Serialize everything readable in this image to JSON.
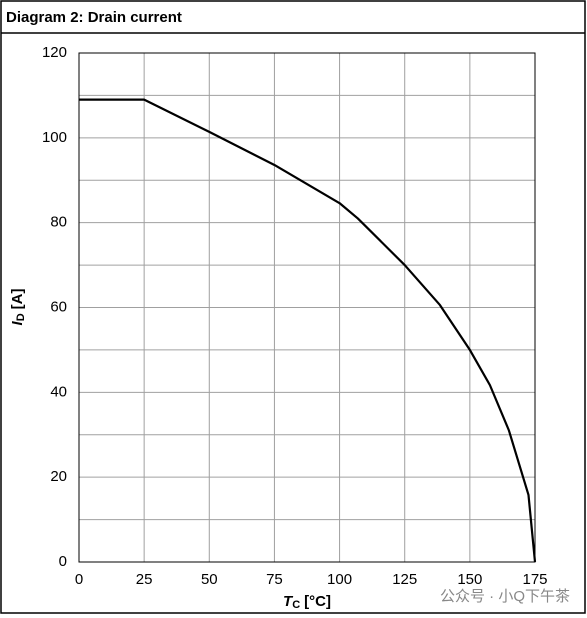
{
  "chart_data": {
    "type": "line",
    "title": "Diagram 2: Drain current",
    "xlabel_symbol": "T",
    "xlabel_subscript": "C",
    "xlabel_unit": "[°C]",
    "ylabel_symbol": "I",
    "ylabel_subscript": "D",
    "ylabel_unit": "[A]",
    "x": [
      0,
      25,
      50,
      75,
      100,
      107,
      125,
      138.5,
      150,
      157.7,
      165,
      172.5,
      175
    ],
    "values": [
      109,
      109,
      101.4,
      93.6,
      84.6,
      81,
      70,
      60.6,
      50,
      41.7,
      31,
      15.8,
      0
    ],
    "color": "#000000",
    "xlim": [
      0,
      175
    ],
    "xticks": [
      0,
      25,
      50,
      75,
      100,
      125,
      150,
      175
    ],
    "ylim": [
      0,
      120
    ],
    "yticks": [
      0,
      20,
      40,
      60,
      80,
      100,
      120
    ],
    "minor_yticks": [
      10,
      30,
      50,
      70,
      90,
      110
    ],
    "grid": true
  },
  "watermark": "公众号 · 小Q下午茶"
}
